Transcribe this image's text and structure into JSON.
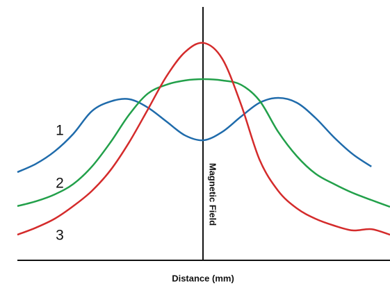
{
  "chart_data": {
    "type": "line",
    "xlabel": "Distance (mm)",
    "ylabel": "Magnetic Field",
    "x": [
      -10,
      -9,
      -8,
      -7,
      -6,
      -5,
      -4,
      -3,
      -2,
      -1,
      0,
      1,
      2,
      3,
      4,
      5,
      6,
      7,
      8,
      9,
      10
    ],
    "xlim": [
      -10,
      10
    ],
    "ylim": [
      0,
      100
    ],
    "series": [
      {
        "name": "1",
        "color": "#1f6bab",
        "values": [
          34.8,
          38.1,
          43.0,
          49.9,
          58.9,
          62.7,
          63.6,
          60.3,
          54.8,
          49.3,
          47.4,
          50.7,
          56.7,
          62.2,
          64.1,
          62.2,
          56.2,
          48.5,
          41.9,
          37.0,
          null
        ]
      },
      {
        "name": "2",
        "color": "#22a04a",
        "values": [
          21.4,
          23.3,
          26.0,
          30.1,
          37.0,
          46.6,
          57.5,
          65.8,
          69.3,
          71.0,
          71.5,
          71.0,
          69.3,
          63.0,
          50.7,
          41.1,
          34.2,
          30.1,
          26.6,
          23.8,
          21.1
        ]
      },
      {
        "name": "3",
        "color": "#d42b2b",
        "values": [
          10.1,
          12.9,
          16.4,
          21.4,
          27.4,
          35.6,
          46.6,
          59.5,
          72.6,
          82.2,
          85.8,
          79.5,
          61.6,
          39.7,
          27.4,
          20.5,
          16.4,
          13.7,
          11.8,
          12.3,
          10.1
        ]
      }
    ]
  }
}
